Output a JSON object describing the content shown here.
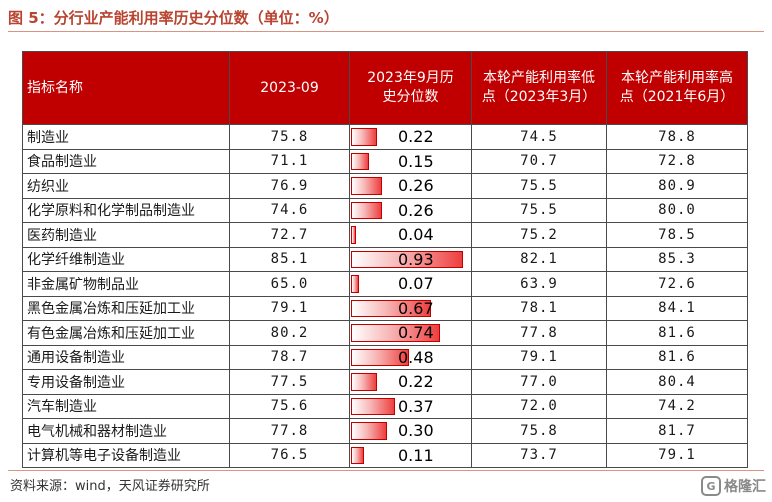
{
  "figure_title": "图 5：分行业产能利用率历史分位数（单位：%）",
  "table": {
    "headers": [
      "指标名称",
      "2023-09",
      "2023年9月历史分位数",
      "本轮产能利用率低点（2023年3月）",
      "本轮产能利用率高点（2021年6月）"
    ],
    "rows": [
      {
        "name": "制造业",
        "value": "75.8",
        "pct": "0.22",
        "low": "74.5",
        "high": "78.8"
      },
      {
        "name": "食品制造业",
        "value": "71.1",
        "pct": "0.15",
        "low": "70.7",
        "high": "72.8"
      },
      {
        "name": "纺织业",
        "value": "76.9",
        "pct": "0.26",
        "low": "75.5",
        "high": "80.9"
      },
      {
        "name": "化学原料和化学制品制造业",
        "value": "74.6",
        "pct": "0.26",
        "low": "75.5",
        "high": "80.0"
      },
      {
        "name": "医药制造业",
        "value": "72.7",
        "pct": "0.04",
        "low": "75.2",
        "high": "78.5"
      },
      {
        "name": "化学纤维制造业",
        "value": "85.1",
        "pct": "0.93",
        "low": "82.1",
        "high": "85.3"
      },
      {
        "name": "非金属矿物制品业",
        "value": "65.0",
        "pct": "0.07",
        "low": "63.9",
        "high": "72.6"
      },
      {
        "name": "黑色金属冶炼和压延加工业",
        "value": "79.1",
        "pct": "0.67",
        "low": "78.1",
        "high": "84.1"
      },
      {
        "name": "有色金属冶炼和压延加工业",
        "value": "80.2",
        "pct": "0.74",
        "low": "77.8",
        "high": "81.6"
      },
      {
        "name": "通用设备制造业",
        "value": "78.7",
        "pct": "0.48",
        "low": "79.1",
        "high": "81.6"
      },
      {
        "name": "专用设备制造业",
        "value": "77.5",
        "pct": "0.22",
        "low": "77.0",
        "high": "80.4"
      },
      {
        "name": "汽车制造业",
        "value": "75.6",
        "pct": "0.37",
        "low": "72.0",
        "high": "74.2"
      },
      {
        "name": "电气机械和器材制造业",
        "value": "77.8",
        "pct": "0.30",
        "low": "75.8",
        "high": "81.7"
      },
      {
        "name": "计算机等电子设备制造业",
        "value": "76.5",
        "pct": "0.11",
        "low": "73.7",
        "high": "79.1"
      }
    ]
  },
  "colors": {
    "header_bg": "#c00000",
    "bar": "#ee3f3f",
    "title": "#b8432f"
  },
  "source": "资料来源：wind，天风证券研究所",
  "watermark": {
    "icon": "gelonghui-logo-icon",
    "text": "格隆汇"
  }
}
